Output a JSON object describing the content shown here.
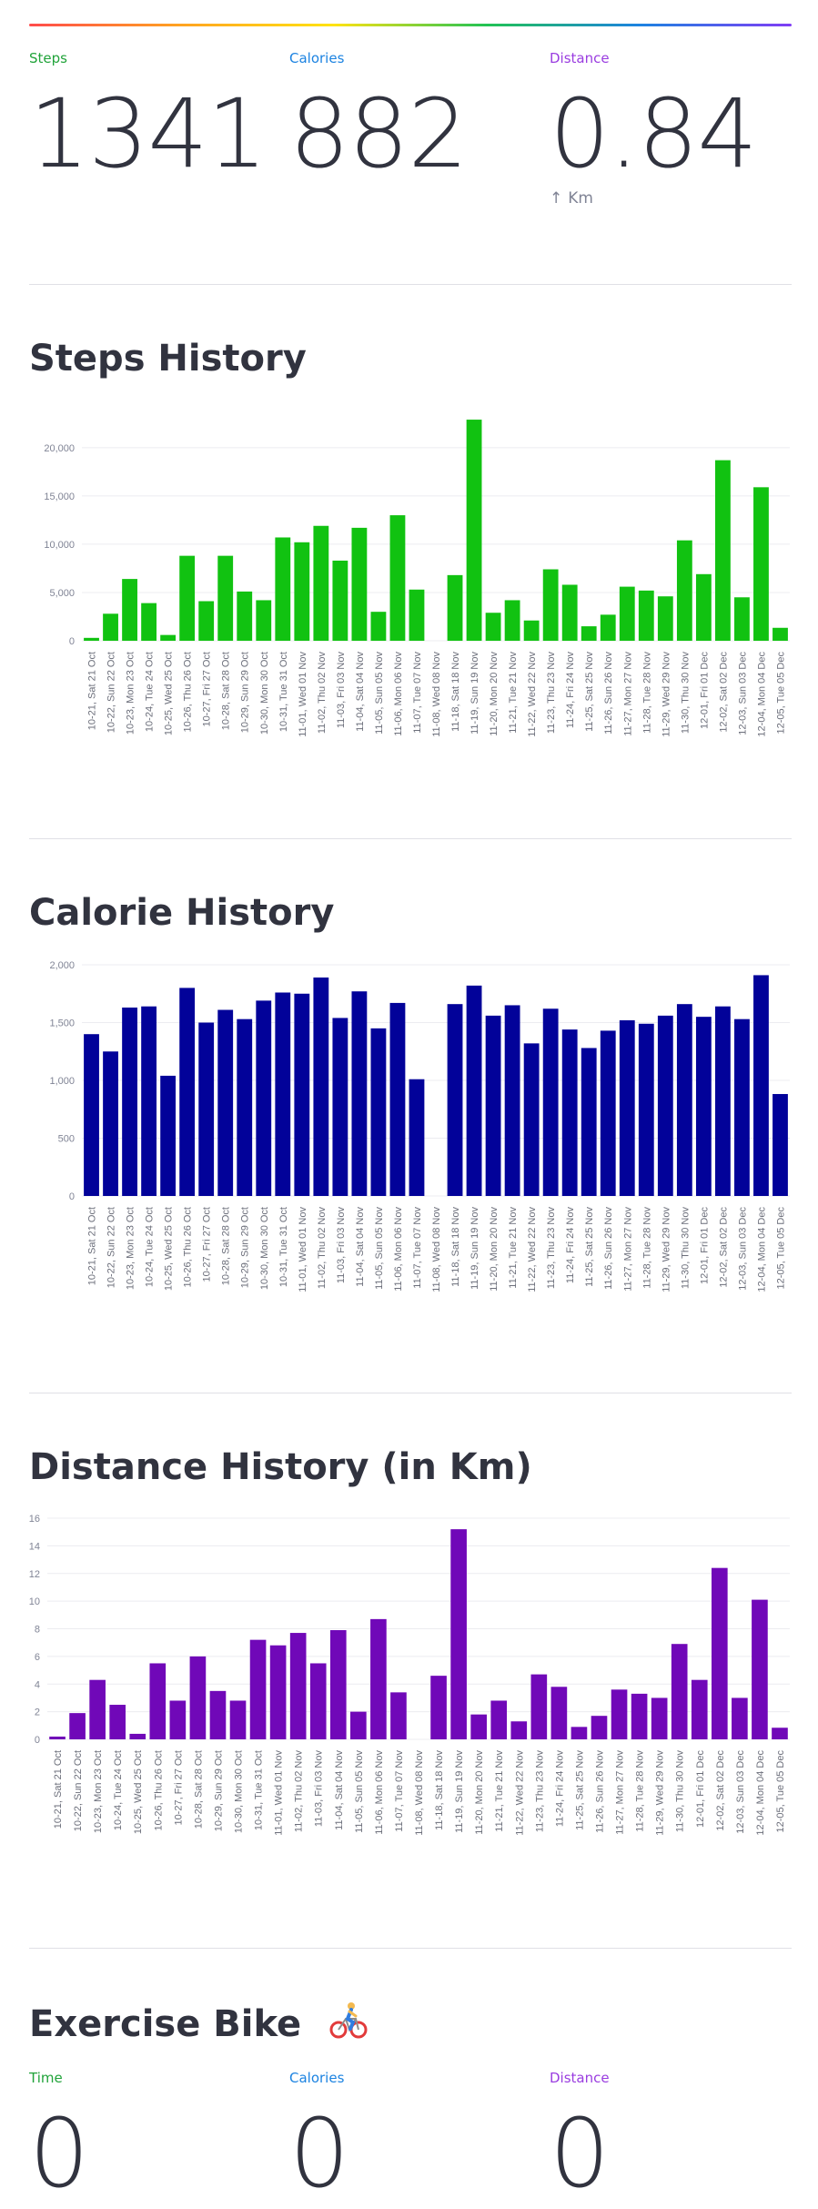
{
  "top_metrics": {
    "steps": {
      "label": "Steps",
      "value": "1341"
    },
    "calories": {
      "label": "Calories",
      "value": "882"
    },
    "distance": {
      "label": "Distance",
      "value": "0.84",
      "delta_arrow": "↑",
      "delta_unit": "Km"
    }
  },
  "sections": {
    "steps_title": "Steps History",
    "calorie_title": "Calorie History",
    "distance_title": "Distance History (in Km)",
    "bike_title": "Exercise Bike",
    "bike_icon": "person-biking-icon"
  },
  "bike_metrics": {
    "time": {
      "label": "Time",
      "value": "0"
    },
    "calories": {
      "label": "Calories",
      "value": "0"
    },
    "distance": {
      "label": "Distance",
      "value": "0"
    }
  },
  "colors": {
    "steps": "#11c211",
    "calories": "#020299",
    "distance": "#7008b8",
    "steps_label": "#21a33a",
    "calories_label": "#1c83e1",
    "distance_label": "#9a3de0"
  },
  "chart_data": [
    {
      "type": "bar",
      "title": "Steps History",
      "categories": [
        "10-21, Sat 21 Oct",
        "10-22, Sun 22 Oct",
        "10-23, Mon 23 Oct",
        "10-24, Tue 24 Oct",
        "10-25, Wed 25 Oct",
        "10-26, Thu 26 Oct",
        "10-27, Fri 27 Oct",
        "10-28, Sat 28 Oct",
        "10-29, Sun 29 Oct",
        "10-30, Mon 30 Oct",
        "10-31, Tue 31 Oct",
        "11-01, Wed 01 Nov",
        "11-02, Thu 02 Nov",
        "11-03, Fri 03 Nov",
        "11-04, Sat 04 Nov",
        "11-05, Sun 05 Nov",
        "11-06, Mon 06 Nov",
        "11-07, Tue 07 Nov",
        "11-08, Wed 08 Nov",
        "11-18, Sat 18 Nov",
        "11-19, Sun 19 Nov",
        "11-20, Mon 20 Nov",
        "11-21, Tue 21 Nov",
        "11-22, Wed 22 Nov",
        "11-23, Thu 23 Nov",
        "11-24, Fri 24 Nov",
        "11-25, Sat 25 Nov",
        "11-26, Sun 26 Nov",
        "11-27, Mon 27 Nov",
        "11-28, Tue 28 Nov",
        "11-29, Wed 29 Nov",
        "11-30, Thu 30 Nov",
        "12-01, Fri 01 Dec",
        "12-02, Sat 02 Dec",
        "12-03, Sun 03 Dec",
        "12-04, Mon 04 Dec",
        "12-05, Tue 05 Dec"
      ],
      "values": [
        300,
        2800,
        6400,
        3900,
        600,
        8800,
        4100,
        8800,
        5100,
        4200,
        10700,
        10200,
        11900,
        8300,
        11700,
        3000,
        13000,
        5300,
        0,
        6800,
        22900,
        2900,
        4200,
        2100,
        7400,
        5800,
        1500,
        2700,
        5600,
        5200,
        4600,
        10400,
        6900,
        18700,
        4500,
        15900,
        1341
      ],
      "yticks": [
        0,
        5000,
        10000,
        15000,
        20000
      ],
      "ytick_labels": [
        "0",
        "5,000",
        "10,000",
        "15,000",
        "20,000"
      ],
      "ylim": [
        0,
        23000
      ]
    },
    {
      "type": "bar",
      "title": "Calorie History",
      "categories": [
        "10-21, Sat 21 Oct",
        "10-22, Sun 22 Oct",
        "10-23, Mon 23 Oct",
        "10-24, Tue 24 Oct",
        "10-25, Wed 25 Oct",
        "10-26, Thu 26 Oct",
        "10-27, Fri 27 Oct",
        "10-28, Sat 28 Oct",
        "10-29, Sun 29 Oct",
        "10-30, Mon 30 Oct",
        "10-31, Tue 31 Oct",
        "11-01, Wed 01 Nov",
        "11-02, Thu 02 Nov",
        "11-03, Fri 03 Nov",
        "11-04, Sat 04 Nov",
        "11-05, Sun 05 Nov",
        "11-06, Mon 06 Nov",
        "11-07, Tue 07 Nov",
        "11-08, Wed 08 Nov",
        "11-18, Sat 18 Nov",
        "11-19, Sun 19 Nov",
        "11-20, Mon 20 Nov",
        "11-21, Tue 21 Nov",
        "11-22, Wed 22 Nov",
        "11-23, Thu 23 Nov",
        "11-24, Fri 24 Nov",
        "11-25, Sat 25 Nov",
        "11-26, Sun 26 Nov",
        "11-27, Mon 27 Nov",
        "11-28, Tue 28 Nov",
        "11-29, Wed 29 Nov",
        "11-30, Thu 30 Nov",
        "12-01, Fri 01 Dec",
        "12-02, Sat 02 Dec",
        "12-03, Sun 03 Dec",
        "12-04, Mon 04 Dec",
        "12-05, Tue 05 Dec"
      ],
      "values": [
        1400,
        1250,
        1630,
        1640,
        1040,
        1800,
        1500,
        1610,
        1530,
        1690,
        1760,
        1750,
        1890,
        1540,
        1770,
        1450,
        1670,
        1010,
        0,
        1660,
        1820,
        1560,
        1650,
        1320,
        1620,
        1440,
        1280,
        1430,
        1520,
        1490,
        1560,
        1660,
        1550,
        1640,
        1530,
        1910,
        882
      ],
      "yticks": [
        0,
        500,
        1000,
        1500,
        2000
      ],
      "ytick_labels": [
        "0",
        "500",
        "1,000",
        "1,500",
        "2,000"
      ],
      "ylim": [
        0,
        2000
      ]
    },
    {
      "type": "bar",
      "title": "Distance History (in Km)",
      "categories": [
        "10-21, Sat 21 Oct",
        "10-22, Sun 22 Oct",
        "10-23, Mon 23 Oct",
        "10-24, Tue 24 Oct",
        "10-25, Wed 25 Oct",
        "10-26, Thu 26 Oct",
        "10-27, Fri 27 Oct",
        "10-28, Sat 28 Oct",
        "10-29, Sun 29 Oct",
        "10-30, Mon 30 Oct",
        "10-31, Tue 31 Oct",
        "11-01, Wed 01 Nov",
        "11-02, Thu 02 Nov",
        "11-03, Fri 03 Nov",
        "11-04, Sat 04 Nov",
        "11-05, Sun 05 Nov",
        "11-06, Mon 06 Nov",
        "11-07, Tue 07 Nov",
        "11-08, Wed 08 Nov",
        "11-18, Sat 18 Nov",
        "11-19, Sun 19 Nov",
        "11-20, Mon 20 Nov",
        "11-21, Tue 21 Nov",
        "11-22, Wed 22 Nov",
        "11-23, Thu 23 Nov",
        "11-24, Fri 24 Nov",
        "11-25, Sat 25 Nov",
        "11-26, Sun 26 Nov",
        "11-27, Mon 27 Nov",
        "11-28, Tue 28 Nov",
        "11-29, Wed 29 Nov",
        "11-30, Thu 30 Nov",
        "12-01, Fri 01 Dec",
        "12-02, Sat 02 Dec",
        "12-03, Sun 03 Dec",
        "12-04, Mon 04 Dec",
        "12-05, Tue 05 Dec"
      ],
      "values": [
        0.2,
        1.9,
        4.3,
        2.5,
        0.4,
        5.5,
        2.8,
        6.0,
        3.5,
        2.8,
        7.2,
        6.8,
        7.7,
        5.5,
        7.9,
        2.0,
        8.7,
        3.4,
        0,
        4.6,
        15.2,
        1.8,
        2.8,
        1.3,
        4.7,
        3.8,
        0.9,
        1.7,
        3.6,
        3.3,
        3.0,
        6.9,
        4.3,
        12.4,
        3.0,
        10.1,
        0.84
      ],
      "yticks": [
        0,
        2,
        4,
        6,
        8,
        10,
        12,
        14,
        16
      ],
      "ytick_labels": [
        "0",
        "2",
        "4",
        "6",
        "8",
        "10",
        "12",
        "14",
        "16"
      ],
      "ylim": [
        0,
        16
      ]
    }
  ]
}
